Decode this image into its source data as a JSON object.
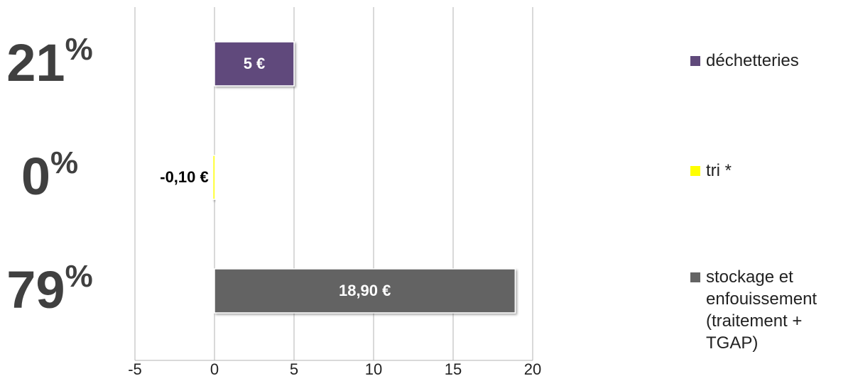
{
  "chart_data": {
    "type": "barh",
    "categories": [
      "déchetteries",
      "tri *",
      "stockage et enfouissement (traitement + TGAP)"
    ],
    "values": [
      5,
      -0.1,
      18.9
    ],
    "value_labels": [
      "5 €",
      "-0,10 €",
      "18,90 €"
    ],
    "colors": [
      "#604a7b",
      "#ffff00",
      "#646464"
    ],
    "share_labels": [
      "21%",
      "0%",
      "79%"
    ],
    "xlim": [
      -5,
      20
    ],
    "xticks": [
      -5,
      0,
      5,
      10,
      15,
      20
    ],
    "grid": true
  }
}
